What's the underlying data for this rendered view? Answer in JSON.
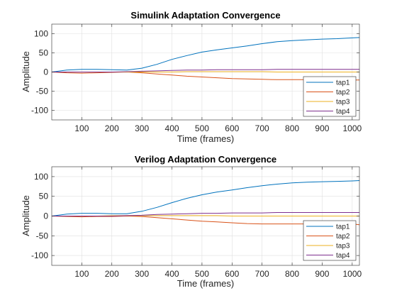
{
  "chart_data": [
    {
      "type": "line",
      "title": "Simulink Adaptation Convergence",
      "xlabel": "Time (frames)",
      "ylabel": "Amplitude",
      "xlim": [
        0,
        1024
      ],
      "ylim": [
        -125,
        125
      ],
      "xticks": [
        100,
        200,
        300,
        400,
        500,
        600,
        700,
        800,
        900,
        1000
      ],
      "yticks": [
        100,
        50,
        0,
        -50,
        -100
      ],
      "grid": true,
      "legend_position": "bottom-right",
      "x": [
        0,
        50,
        100,
        150,
        200,
        250,
        300,
        350,
        400,
        450,
        500,
        550,
        600,
        650,
        700,
        750,
        800,
        850,
        900,
        950,
        1000,
        1024
      ],
      "series": [
        {
          "name": "tap1",
          "color": "#0072BD",
          "values": [
            0,
            5,
            7,
            7,
            6,
            5,
            10,
            20,
            33,
            43,
            52,
            58,
            63,
            68,
            74,
            79,
            82,
            84,
            86,
            87,
            89,
            90
          ]
        },
        {
          "name": "tap2",
          "color": "#D95319",
          "values": [
            0,
            -2,
            -3,
            -2,
            -1,
            0,
            -2,
            -5,
            -8,
            -11,
            -13,
            -15,
            -17,
            -18,
            -19,
            -20,
            -20,
            -20,
            -20,
            -20,
            -21,
            -21
          ]
        },
        {
          "name": "tap3",
          "color": "#EDB120",
          "values": [
            0,
            0,
            0,
            0,
            0,
            0,
            0,
            0,
            0,
            1,
            1,
            1,
            1,
            1,
            1,
            0,
            0,
            0,
            0,
            0,
            0,
            0
          ]
        },
        {
          "name": "tap4",
          "color": "#7E2F8E",
          "values": [
            0,
            0,
            0,
            0,
            0,
            1,
            2,
            3,
            4,
            5,
            5,
            6,
            6,
            6,
            6,
            7,
            7,
            7,
            7,
            7,
            7,
            7
          ]
        }
      ]
    },
    {
      "type": "line",
      "title": "Verilog Adaptation Convergence",
      "xlabel": "Time (frames)",
      "ylabel": "Amplitude",
      "xlim": [
        0,
        1024
      ],
      "ylim": [
        -125,
        125
      ],
      "xticks": [
        100,
        200,
        300,
        400,
        500,
        600,
        700,
        800,
        900,
        1000
      ],
      "yticks": [
        100,
        50,
        0,
        -50,
        -100
      ],
      "grid": true,
      "legend_position": "bottom-right",
      "x": [
        0,
        50,
        100,
        150,
        200,
        250,
        300,
        350,
        400,
        450,
        500,
        550,
        600,
        650,
        700,
        750,
        800,
        850,
        900,
        950,
        1000,
        1024
      ],
      "series": [
        {
          "name": "tap1",
          "color": "#0072BD",
          "values": [
            0,
            5,
            7,
            7,
            6,
            6,
            12,
            22,
            34,
            45,
            54,
            61,
            66,
            72,
            77,
            81,
            84,
            86,
            87,
            88,
            89,
            90
          ]
        },
        {
          "name": "tap2",
          "color": "#D95319",
          "values": [
            0,
            -1,
            -2,
            -1,
            -1,
            0,
            -1,
            -4,
            -7,
            -10,
            -13,
            -15,
            -17,
            -19,
            -20,
            -20,
            -20,
            -20,
            -19,
            -19,
            -20,
            -22
          ]
        },
        {
          "name": "tap3",
          "color": "#EDB120",
          "values": [
            0,
            0,
            0,
            0,
            1,
            1,
            1,
            1,
            1,
            1,
            1,
            1,
            0,
            0,
            0,
            0,
            0,
            0,
            0,
            0,
            0,
            0
          ]
        },
        {
          "name": "tap4",
          "color": "#7E2F8E",
          "values": [
            0,
            0,
            0,
            0,
            0,
            1,
            2,
            4,
            5,
            6,
            7,
            7,
            8,
            8,
            8,
            9,
            9,
            9,
            9,
            9,
            9,
            9
          ]
        }
      ]
    }
  ]
}
